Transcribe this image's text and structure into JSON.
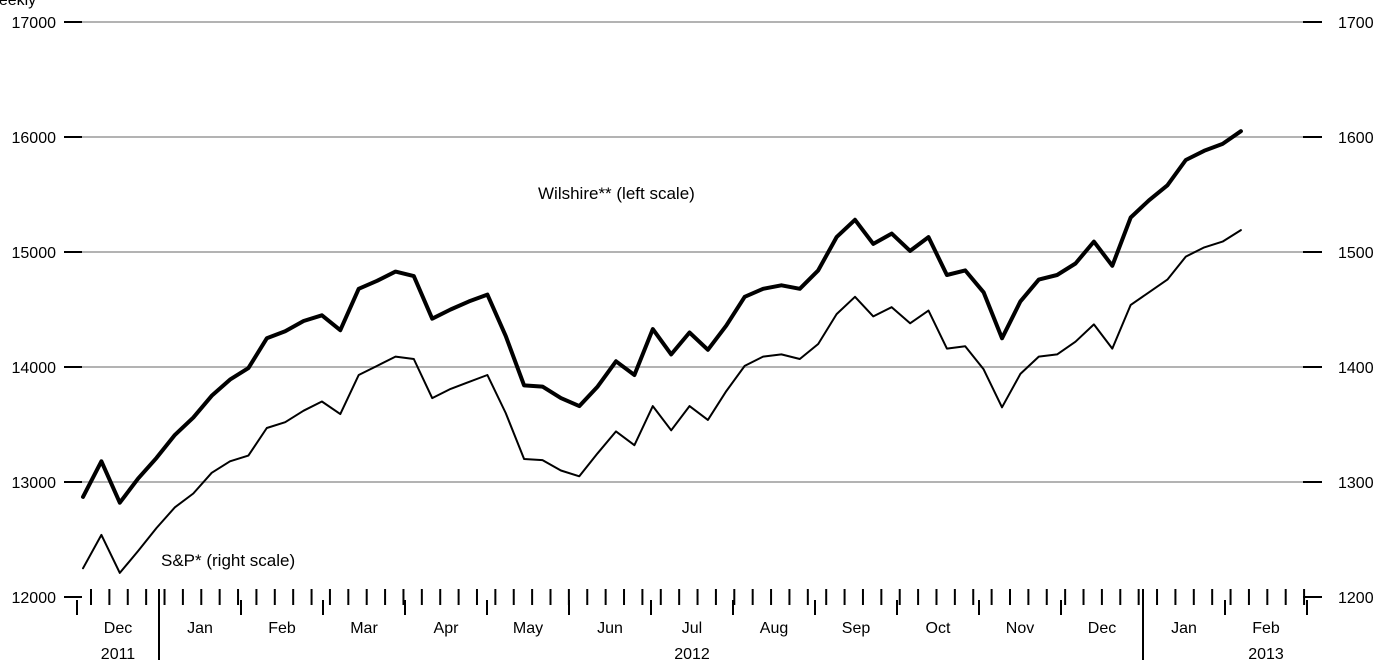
{
  "chart_data": {
    "type": "line",
    "top_label_fragment": "Weekly",
    "left_axis": {
      "ticks": [
        12000,
        13000,
        14000,
        15000,
        16000,
        17000
      ],
      "ylim": [
        12000,
        17000
      ]
    },
    "right_axis": {
      "ticks": [
        1200,
        1300,
        1400,
        1500,
        1600,
        1700
      ],
      "ylim": [
        1200,
        1700
      ]
    },
    "months": [
      "Dec",
      "Jan",
      "Feb",
      "Mar",
      "Apr",
      "May",
      "Jun",
      "Jul",
      "Aug",
      "Sep",
      "Oct",
      "Nov",
      "Dec",
      "Jan",
      "Feb"
    ],
    "years": [
      {
        "label": "2011",
        "month_index": 0
      },
      {
        "label": "2012",
        "month_index": 7
      },
      {
        "label": "2013",
        "month_index": 14
      }
    ],
    "series": [
      {
        "name": "Wilshire** (left scale)",
        "axis": "left",
        "style": "thick",
        "values": [
          12870,
          13180,
          12820,
          13030,
          13210,
          13410,
          13560,
          13750,
          13890,
          13990,
          14250,
          14310,
          14400,
          14450,
          14320,
          14680,
          14750,
          14830,
          14790,
          14420,
          14500,
          14570,
          14630,
          14270,
          13840,
          13830,
          13730,
          13660,
          13830,
          14050,
          13930,
          14330,
          14110,
          14300,
          14150,
          14360,
          14610,
          14680,
          14710,
          14680,
          14840,
          15130,
          15280,
          15070,
          15160,
          15010,
          15130,
          14800,
          14840,
          14650,
          14250,
          14570,
          14760,
          14800,
          14900,
          15090,
          14880,
          15300,
          15450,
          15580,
          15800,
          15880,
          15940,
          16050
        ]
      },
      {
        "name": "S&P* (right scale)",
        "axis": "right",
        "style": "thin",
        "values": [
          1225,
          1254,
          1221,
          1240,
          1260,
          1278,
          1290,
          1308,
          1318,
          1323,
          1347,
          1352,
          1362,
          1370,
          1359,
          1393,
          1401,
          1409,
          1407,
          1373,
          1381,
          1387,
          1393,
          1360,
          1320,
          1319,
          1310,
          1305,
          1325,
          1344,
          1332,
          1366,
          1345,
          1366,
          1354,
          1379,
          1401,
          1409,
          1411,
          1407,
          1420,
          1446,
          1461,
          1444,
          1452,
          1438,
          1449,
          1416,
          1418,
          1398,
          1365,
          1394,
          1409,
          1411,
          1422,
          1437,
          1416,
          1454,
          1465,
          1476,
          1496,
          1504,
          1509,
          1519
        ]
      }
    ]
  }
}
